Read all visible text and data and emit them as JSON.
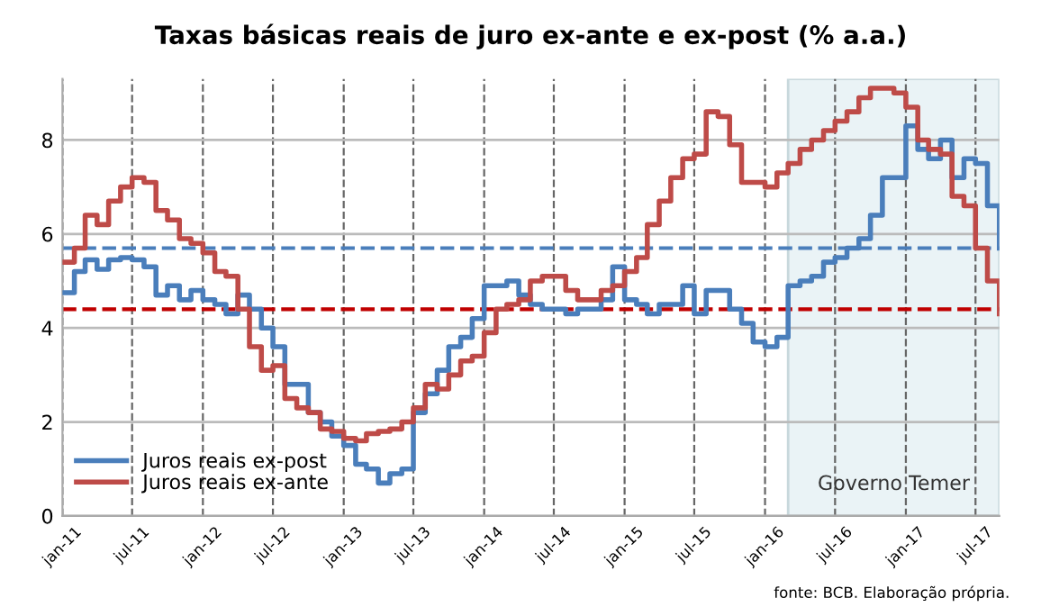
{
  "chart_data": {
    "type": "step",
    "title": "Taxas básicas reais de juro ex-ante e ex-post (% a.a.)",
    "x": [
      "2011-01",
      "2011-02",
      "2011-03",
      "2011-04",
      "2011-05",
      "2011-06",
      "2011-07",
      "2011-08",
      "2011-09",
      "2011-10",
      "2011-11",
      "2011-12",
      "2012-01",
      "2012-02",
      "2012-03",
      "2012-04",
      "2012-05",
      "2012-06",
      "2012-07",
      "2012-08",
      "2012-09",
      "2012-10",
      "2012-11",
      "2012-12",
      "2013-01",
      "2013-02",
      "2013-03",
      "2013-04",
      "2013-05",
      "2013-06",
      "2013-07",
      "2013-08",
      "2013-09",
      "2013-10",
      "2013-11",
      "2013-12",
      "2014-01",
      "2014-02",
      "2014-03",
      "2014-04",
      "2014-05",
      "2014-06",
      "2014-07",
      "2014-08",
      "2014-09",
      "2014-10",
      "2014-11",
      "2014-12",
      "2015-01",
      "2015-02",
      "2015-03",
      "2015-04",
      "2015-05",
      "2015-06",
      "2015-07",
      "2015-08",
      "2015-09",
      "2015-10",
      "2015-11",
      "2015-12",
      "2016-01",
      "2016-02",
      "2016-03",
      "2016-04",
      "2016-05",
      "2016-06",
      "2016-07",
      "2016-08",
      "2016-09",
      "2016-10",
      "2016-11",
      "2016-12",
      "2017-01",
      "2017-02",
      "2017-03",
      "2017-04",
      "2017-05",
      "2017-06",
      "2017-07",
      "2017-08",
      "2017-09"
    ],
    "series": [
      {
        "name": "Juros reais ex-post",
        "color": "#4a7ebb",
        "values": [
          4.75,
          5.2,
          5.45,
          5.25,
          5.45,
          5.5,
          5.45,
          5.3,
          4.7,
          4.9,
          4.6,
          4.8,
          4.6,
          4.5,
          4.3,
          4.7,
          4.4,
          4.0,
          3.6,
          2.8,
          2.8,
          2.2,
          2.0,
          1.7,
          1.5,
          1.1,
          1.0,
          0.7,
          0.9,
          1.0,
          2.2,
          2.6,
          3.1,
          3.6,
          3.8,
          4.2,
          4.9,
          4.9,
          5.0,
          4.7,
          4.5,
          4.4,
          4.4,
          4.3,
          4.4,
          4.4,
          4.6,
          5.3,
          4.6,
          4.5,
          4.3,
          4.5,
          4.5,
          4.9,
          4.3,
          4.8,
          4.8,
          4.4,
          4.1,
          3.7,
          3.6,
          3.8,
          4.9,
          5.0,
          5.1,
          5.4,
          5.5,
          5.7,
          5.9,
          6.4,
          7.2,
          7.2,
          8.3,
          7.8,
          7.6,
          8.0,
          7.2,
          7.6,
          7.5,
          6.6,
          5.7
        ]
      },
      {
        "name": "Juros reais ex-ante",
        "color": "#be4b48",
        "values": [
          5.4,
          5.7,
          6.4,
          6.2,
          6.7,
          7.0,
          7.2,
          7.1,
          6.5,
          6.3,
          5.9,
          5.8,
          5.6,
          5.2,
          5.1,
          4.4,
          3.6,
          3.1,
          3.2,
          2.5,
          2.3,
          2.2,
          1.85,
          1.8,
          1.65,
          1.6,
          1.75,
          1.8,
          1.85,
          2.0,
          2.3,
          2.8,
          2.7,
          3.0,
          3.3,
          3.4,
          3.9,
          4.4,
          4.5,
          4.6,
          5.0,
          5.1,
          5.1,
          4.8,
          4.6,
          4.6,
          4.8,
          4.9,
          5.2,
          5.5,
          6.2,
          6.7,
          7.2,
          7.6,
          7.7,
          8.6,
          8.5,
          7.9,
          7.1,
          7.1,
          7.0,
          7.3,
          7.5,
          7.8,
          8.0,
          8.2,
          8.4,
          8.6,
          8.9,
          9.1,
          9.1,
          9.0,
          8.7,
          8.0,
          7.8,
          7.7,
          6.8,
          6.6,
          5.7,
          5.0,
          4.3
        ]
      }
    ],
    "xlim": [
      "2011-01",
      "2017-09"
    ],
    "xticks": [
      {
        "value": "2011-01",
        "label": "jan-11"
      },
      {
        "value": "2011-07",
        "label": "jul-11"
      },
      {
        "value": "2012-01",
        "label": "jan-12"
      },
      {
        "value": "2012-07",
        "label": "jul-12"
      },
      {
        "value": "2013-01",
        "label": "jan-13"
      },
      {
        "value": "2013-07",
        "label": "jul-13"
      },
      {
        "value": "2014-01",
        "label": "jan-14"
      },
      {
        "value": "2014-07",
        "label": "jul-14"
      },
      {
        "value": "2015-01",
        "label": "jan-15"
      },
      {
        "value": "2015-07",
        "label": "jul-15"
      },
      {
        "value": "2016-01",
        "label": "jan-16"
      },
      {
        "value": "2016-07",
        "label": "jul-16"
      },
      {
        "value": "2017-01",
        "label": "jan-17"
      },
      {
        "value": "2017-07",
        "label": "jul-17"
      }
    ],
    "ylim": [
      0,
      9.3
    ],
    "yticks": [
      0,
      2,
      4,
      6,
      8
    ],
    "ref_lines": [
      {
        "axis": "y",
        "value": 5.7,
        "color": "#4a7ebb",
        "line_style": "dashed"
      },
      {
        "axis": "y",
        "value": 4.4,
        "color": "#c00000",
        "line_style": "dashed"
      }
    ],
    "bands": [
      {
        "axis": "x",
        "from": "2016-03",
        "to": "2017-09",
        "label": "Governo Temer",
        "color": "#eaf3f6"
      }
    ],
    "grid": true,
    "legend": "bottom left",
    "line_style": "solid",
    "marker": "none",
    "annotations": [
      "fonte: BCB. Elaboração própria."
    ]
  }
}
